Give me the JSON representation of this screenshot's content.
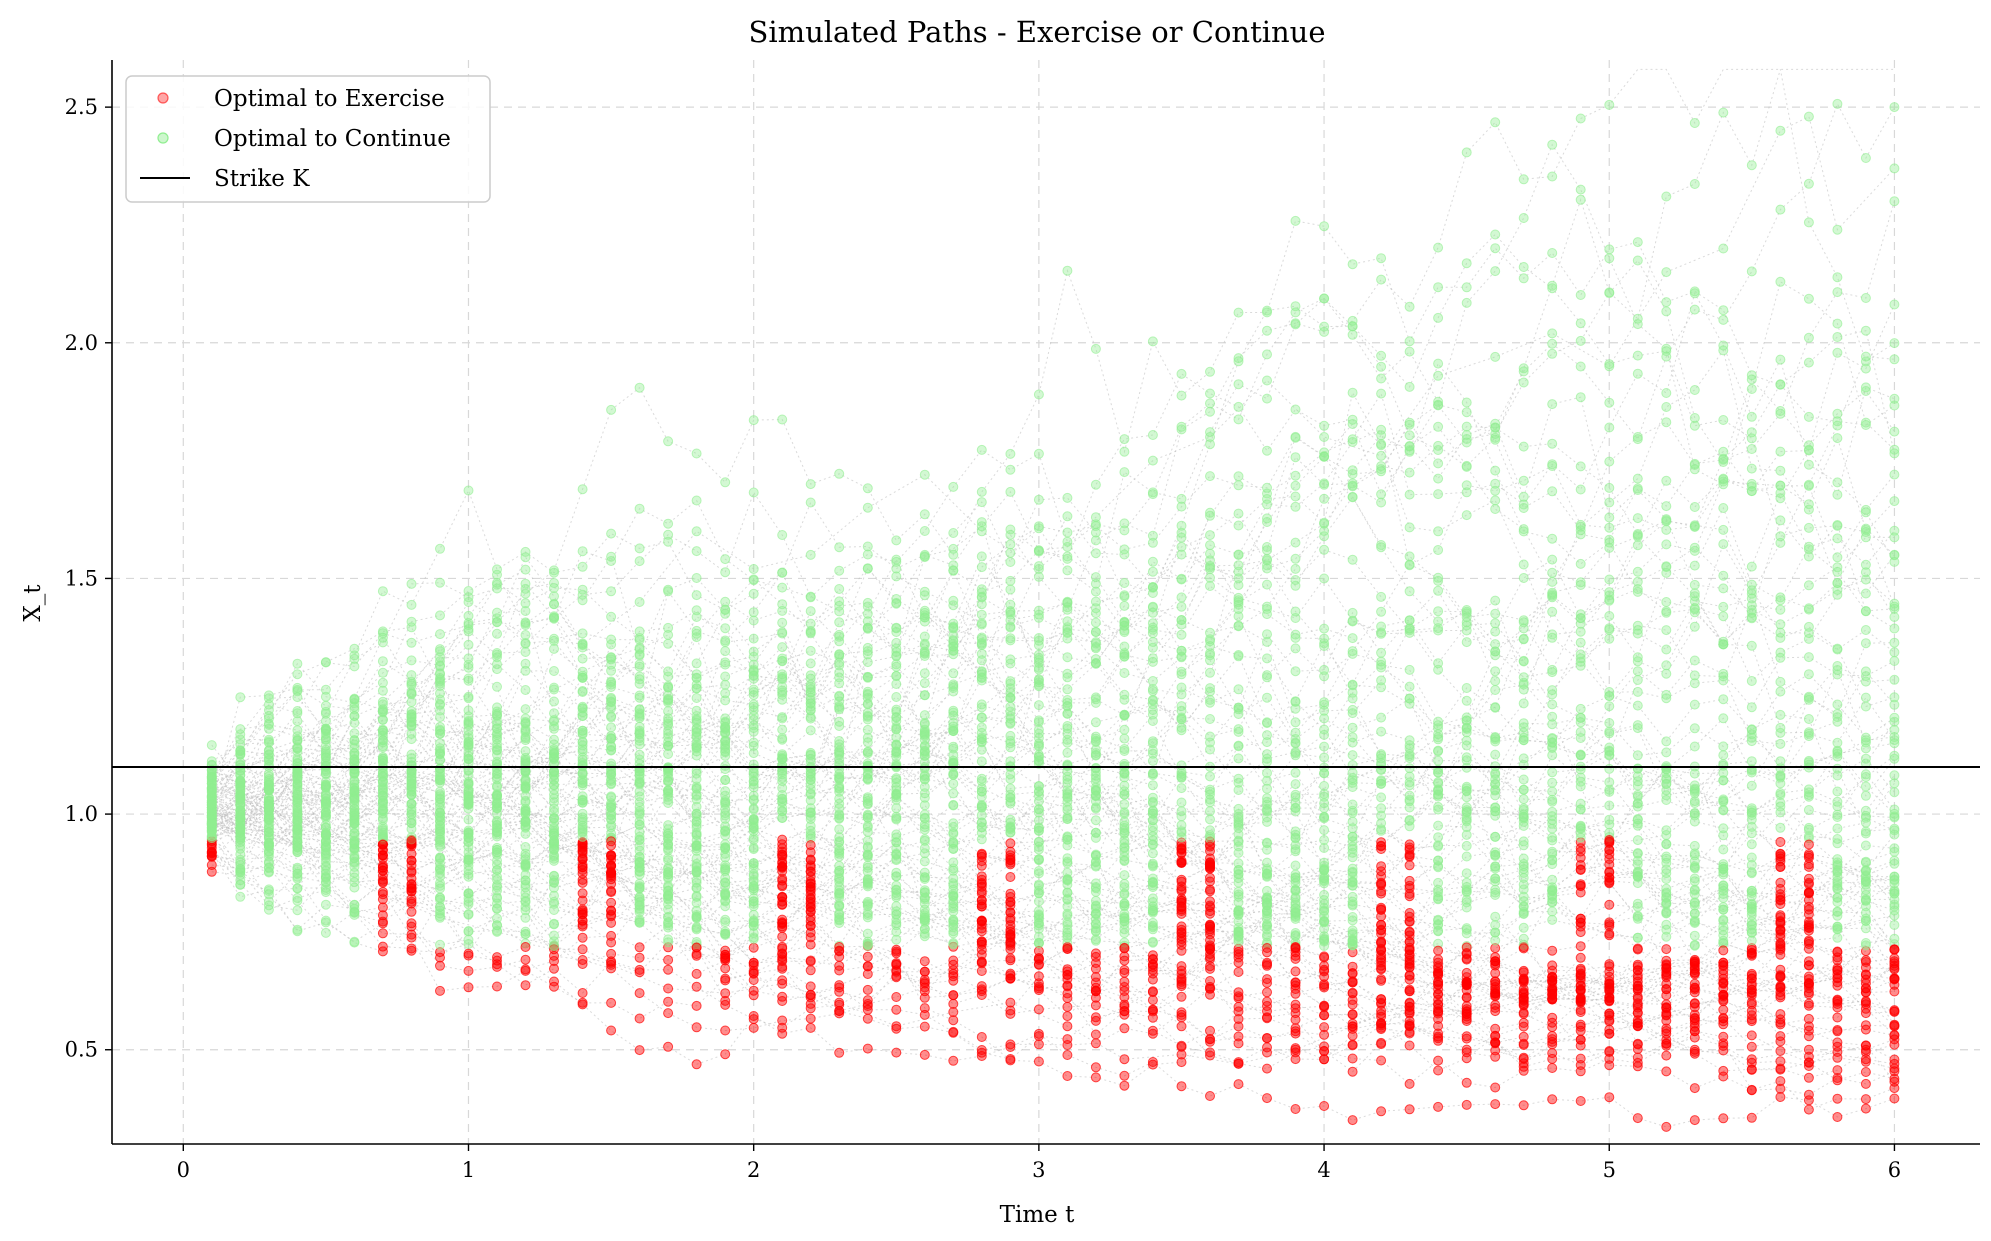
{
  "chart_data": {
    "type": "scatter",
    "title": "Simulated Paths - Exercise or Continue",
    "xlabel": "Time t",
    "ylabel": "X_t",
    "xlim": [
      -0.25,
      6.3
    ],
    "ylim": [
      0.3,
      2.6
    ],
    "x_ticks": [
      0,
      1,
      2,
      3,
      4,
      5,
      6
    ],
    "y_ticks": [
      0.5,
      1.0,
      1.5,
      2.0,
      2.5
    ],
    "x_tick_labels": [
      "0",
      "1",
      "2",
      "3",
      "4",
      "5",
      "6"
    ],
    "y_tick_labels": [
      "0.5",
      "1.0",
      "1.5",
      "2.0",
      "2.5"
    ],
    "grid": true,
    "legend_position": "top-left",
    "strike": {
      "name": "Strike K",
      "value": 1.1,
      "color": "#000000"
    },
    "simulation": {
      "n_paths": 100,
      "n_steps": 60,
      "t_max": 6.0,
      "x0": 1.0
    },
    "series": [
      {
        "name": "Optimal to Exercise",
        "color": "#ff0000",
        "marker": "circle"
      },
      {
        "name": "Optimal to Continue",
        "color": "#90ee90",
        "marker": "circle"
      }
    ],
    "path_line_color": "#bbbbbb",
    "highlighted_paths": [
      {
        "x": [
          0.1,
          0.3,
          0.5,
          0.7,
          0.9,
          1.0,
          1.2,
          1.4,
          1.6,
          1.8,
          2.0,
          2.2,
          2.4,
          2.6,
          2.8,
          3.0,
          3.2,
          3.4,
          3.6,
          3.8,
          4.0,
          4.2,
          4.4,
          4.6,
          4.8,
          5.0,
          5.2,
          5.4,
          5.6,
          5.7,
          5.8,
          6.0
        ],
        "y": [
          1.02,
          1.08,
          1.12,
          1.2,
          1.35,
          1.45,
          1.38,
          1.36,
          1.45,
          1.6,
          1.52,
          1.55,
          1.65,
          1.72,
          1.6,
          1.52,
          1.63,
          1.75,
          1.8,
          1.92,
          1.8,
          1.76,
          1.93,
          1.97,
          2.02,
          1.95,
          2.15,
          2.2,
          2.45,
          2.48,
          2.24,
          2.37
        ]
      },
      {
        "x": [
          0.1,
          0.3,
          0.5,
          0.7,
          0.9,
          1.1,
          1.3,
          1.5,
          1.7,
          1.9,
          2.1,
          2.3,
          2.5,
          2.7,
          2.9,
          3.1,
          3.3,
          3.5,
          3.7,
          3.9,
          4.1,
          4.3,
          4.5,
          4.7,
          4.9,
          5.1,
          5.3,
          5.5,
          5.7,
          5.9,
          6.0
        ],
        "y": [
          0.98,
          0.93,
          0.88,
          0.83,
          0.78,
          0.75,
          0.72,
          0.68,
          0.63,
          0.62,
          0.64,
          0.6,
          0.55,
          0.58,
          0.6,
          0.55,
          0.48,
          0.49,
          0.47,
          0.5,
          0.55,
          0.6,
          0.58,
          0.62,
          0.58,
          0.55,
          0.5,
          0.48,
          0.5,
          0.48,
          0.47
        ]
      }
    ]
  }
}
